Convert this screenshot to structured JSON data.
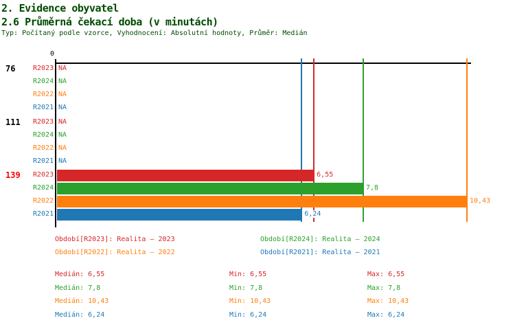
{
  "header": {
    "title1": "2. Evidence obyvatel",
    "title2": "2.6 Průměrná čekací doba (v minutách)",
    "subtitle": "Typ: Počítaný podle vzorce, Vyhodnocení: Absolutní hodnoty, Průměr: Medián"
  },
  "colors": {
    "R2023": "#d62728",
    "R2024": "#2ca02c",
    "R2022": "#ff7f0e",
    "R2021": "#1f77b4",
    "title": "#004b00",
    "axis": "#000000",
    "group_label": "#000000",
    "group_label_highlight": "#ff0000"
  },
  "chart_data": {
    "type": "bar",
    "orientation": "horizontal",
    "title": "2.6 Průměrná čekací doba (v minutách)",
    "xlabel": "",
    "ylabel": "",
    "axis": {
      "zero_label": "0",
      "x_min": 0,
      "x_max": 10.55,
      "grid": false
    },
    "series_order": [
      "R2023",
      "R2024",
      "R2022",
      "R2021"
    ],
    "groups": [
      {
        "label": "76",
        "highlighted": false,
        "rows": [
          {
            "series": "R2023",
            "value": null,
            "display": "NA"
          },
          {
            "series": "R2024",
            "value": null,
            "display": "NA"
          },
          {
            "series": "R2022",
            "value": null,
            "display": "NA"
          },
          {
            "series": "R2021",
            "value": null,
            "display": "NA"
          }
        ]
      },
      {
        "label": "111",
        "highlighted": false,
        "rows": [
          {
            "series": "R2023",
            "value": null,
            "display": "NA"
          },
          {
            "series": "R2024",
            "value": null,
            "display": "NA"
          },
          {
            "series": "R2022",
            "value": null,
            "display": "NA"
          },
          {
            "series": "R2021",
            "value": null,
            "display": "NA"
          }
        ]
      },
      {
        "label": "139",
        "highlighted": true,
        "rows": [
          {
            "series": "R2023",
            "value": 6.55,
            "display": "6,55"
          },
          {
            "series": "R2024",
            "value": 7.8,
            "display": "7,8"
          },
          {
            "series": "R2022",
            "value": 10.43,
            "display": "10,43"
          },
          {
            "series": "R2021",
            "value": 6.24,
            "display": "6,24"
          }
        ]
      }
    ],
    "reference_lines": [
      {
        "series": "R2021",
        "value": 6.24
      },
      {
        "series": "R2023",
        "value": 6.55
      },
      {
        "series": "R2024",
        "value": 7.8
      },
      {
        "series": "R2022",
        "value": 10.43
      }
    ]
  },
  "legend": {
    "items": [
      {
        "series": "R2023",
        "label": "Období[R2023]: Realita – 2023",
        "column": 0,
        "row": 0
      },
      {
        "series": "R2022",
        "label": "Období[R2022]: Realita – 2022",
        "column": 0,
        "row": 1
      },
      {
        "series": "R2024",
        "label": "Období[R2024]: Realita – 2024",
        "column": 1,
        "row": 0
      },
      {
        "series": "R2021",
        "label": "Období[R2021]: Realita – 2021",
        "column": 1,
        "row": 1
      }
    ]
  },
  "stats": {
    "rows": [
      {
        "series": "R2023",
        "median": "Medián: 6,55",
        "min": "Min: 6,55",
        "max": "Max: 6,55"
      },
      {
        "series": "R2024",
        "median": "Medián: 7,8",
        "min": "Min: 7,8",
        "max": "Max: 7,8"
      },
      {
        "series": "R2022",
        "median": "Medián: 10,43",
        "min": "Min: 10,43",
        "max": "Max: 10,43"
      },
      {
        "series": "R2021",
        "median": "Medián: 6,24",
        "min": "Min: 6,24",
        "max": "Max: 6,24"
      }
    ]
  }
}
